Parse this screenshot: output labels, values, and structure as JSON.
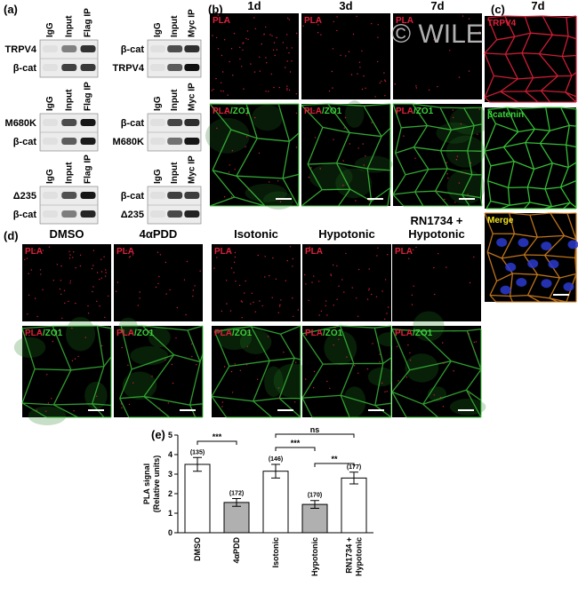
{
  "watermark": "© WILEY",
  "panel_a": {
    "label": "(a)",
    "blots": [
      {
        "lanes": [
          "IgG",
          "Input",
          "Flag IP"
        ],
        "rows": [
          "TRPV4",
          "β-cat"
        ]
      },
      {
        "lanes": [
          "IgG",
          "Input",
          "Myc IP"
        ],
        "rows": [
          "β-cat",
          "TRPV4"
        ]
      },
      {
        "lanes": [
          "IgG",
          "Input",
          "Flag IP"
        ],
        "rows": [
          "M680K",
          "β-cat"
        ]
      },
      {
        "lanes": [
          "IgG",
          "Input",
          "Myc IP"
        ],
        "rows": [
          "β-cat",
          "M680K"
        ]
      },
      {
        "lanes": [
          "IgG",
          "Input",
          "Flag IP"
        ],
        "rows": [
          "Δ235",
          "β-cat"
        ]
      },
      {
        "lanes": [
          "IgG",
          "Input",
          "Myc IP"
        ],
        "rows": [
          "β-cat",
          "Δ235"
        ]
      }
    ]
  },
  "panel_b": {
    "label": "(b)",
    "columns": [
      "1d",
      "3d",
      "7d"
    ],
    "pla": "PLA",
    "zo1": "/ZO1"
  },
  "panel_c": {
    "label": "(c)",
    "column": "7d",
    "rows": [
      "TRPV4",
      "βcatenin",
      "Merge"
    ]
  },
  "panel_d": {
    "label": "(d)",
    "columns": [
      [
        "DMSO"
      ],
      [
        "4αPDD"
      ],
      [
        "Isotonic"
      ],
      [
        "Hypotonic"
      ],
      [
        "RN1734 +",
        "Hypotonic"
      ]
    ],
    "pla": "PLA",
    "zo1": "/ZO1"
  },
  "panel_e": {
    "label": "(e)",
    "y_label": [
      "PLA signal",
      "(Relative units)"
    ],
    "categories": [
      [
        "DMSO"
      ],
      [
        "4αPDD"
      ],
      [
        "Isotonic"
      ],
      [
        "Hypotonic"
      ],
      [
        "RN1734 +",
        "Hypotonic"
      ]
    ],
    "values": [
      3.5,
      1.55,
      3.15,
      1.45,
      2.8
    ],
    "errors": [
      0.35,
      0.2,
      0.35,
      0.2,
      0.3
    ],
    "n_labels": [
      "(135)",
      "(172)",
      "(146)",
      "(170)",
      "(177)"
    ],
    "colors": [
      "#ffffff",
      "#b0b0b0",
      "#ffffff",
      "#b0b0b0",
      "#ffffff"
    ],
    "ylim": [
      0,
      5
    ],
    "yticks": [
      0,
      1,
      2,
      3,
      4,
      5
    ],
    "significance": [
      {
        "from": 0,
        "to": 1,
        "label": "***"
      },
      {
        "from": 2,
        "to": 3,
        "label": "***"
      },
      {
        "from": 3,
        "to": 4,
        "label": "**"
      },
      {
        "from": 2,
        "to": 4,
        "label": "ns"
      }
    ]
  }
}
